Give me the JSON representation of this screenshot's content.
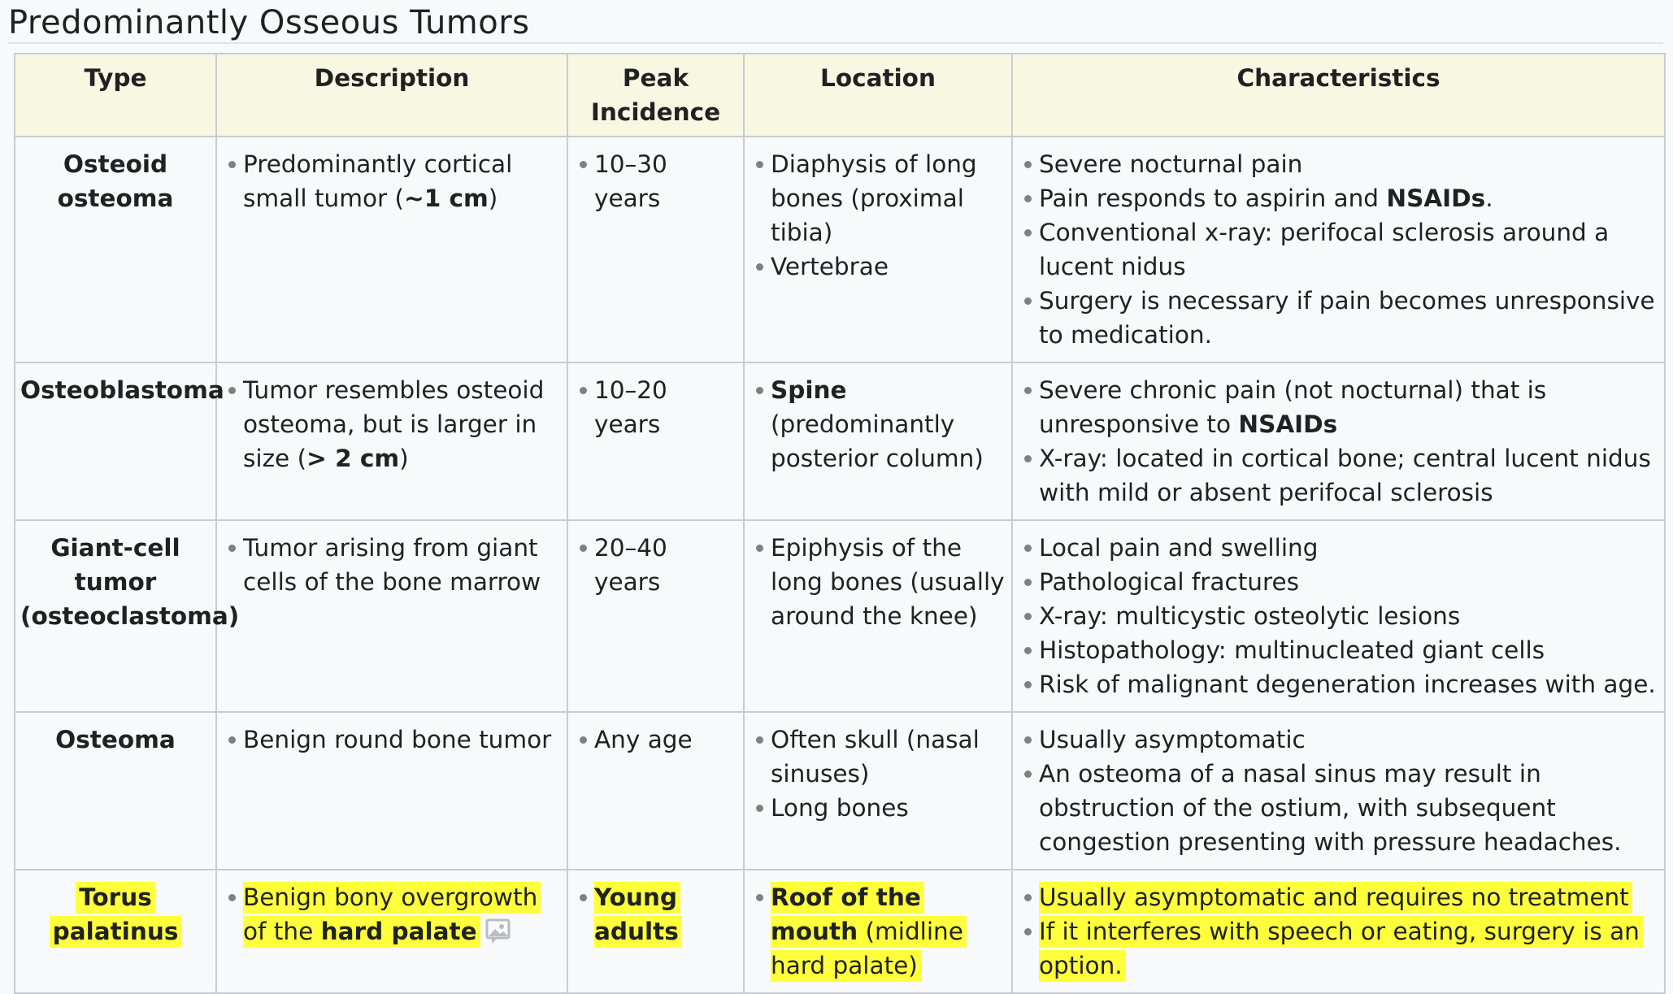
{
  "title": "Predominantly Osseous Tumors",
  "columns": {
    "type": "Type",
    "description": "Description",
    "peak_line1": "Peak",
    "peak_line2": "Incidence",
    "location": "Location",
    "characteristics": "Characteristics"
  },
  "rows": [
    {
      "type": "Osteoid osteoma",
      "description": [
        {
          "pre": "Predominantly cortical small tumor (",
          "bold": "~1 cm",
          "post": ")"
        }
      ],
      "peak": [
        "10–30 years"
      ],
      "location": [
        "Diaphysis of long bones (proximal tibia)",
        "Vertebrae"
      ],
      "characteristics": [
        {
          "pre": "Severe nocturnal pain",
          "bold": "",
          "post": ""
        },
        {
          "pre": "Pain responds to aspirin and ",
          "bold": "NSAIDs",
          "post": "."
        },
        {
          "pre": "Conventional x-ray: perifocal sclerosis around a lucent nidus",
          "bold": "",
          "post": ""
        },
        {
          "pre": "Surgery is necessary if pain becomes unresponsive to medication.",
          "bold": "",
          "post": ""
        }
      ]
    },
    {
      "type": "Osteoblastoma",
      "description": [
        {
          "pre": "Tumor resembles osteoid osteoma, but is larger in size (",
          "bold": "> 2 cm",
          "post": ")"
        }
      ],
      "peak": [
        "10–20 years"
      ],
      "location_bold": "Spine",
      "location_rest": " (predominantly posterior column)",
      "characteristics": [
        {
          "pre": "Severe chronic pain (not nocturnal) that is unresponsive to ",
          "bold": "NSAIDs",
          "post": ""
        },
        {
          "pre": "X-ray: located in cortical bone; central lucent nidus with mild or absent perifocal sclerosis",
          "bold": "",
          "post": ""
        }
      ]
    },
    {
      "type": "Giant-cell tumor (osteoclastoma)",
      "description": [
        {
          "pre": "Tumor arising from giant cells of the bone marrow",
          "bold": "",
          "post": ""
        }
      ],
      "peak": [
        "20–40 years"
      ],
      "location": [
        "Epiphysis of the long bones (usually around the knee)"
      ],
      "characteristics": [
        {
          "pre": "Local pain and swelling",
          "bold": "",
          "post": ""
        },
        {
          "pre": "Pathological fractures",
          "bold": "",
          "post": ""
        },
        {
          "pre": "X-ray: multicystic osteolytic lesions",
          "bold": "",
          "post": ""
        },
        {
          "pre": "Histopathology: multinucleated giant cells",
          "bold": "",
          "post": ""
        },
        {
          "pre": "Risk of malignant degeneration increases with age.",
          "bold": "",
          "post": ""
        }
      ]
    },
    {
      "type": "Osteoma",
      "description": [
        {
          "pre": "Benign round bone tumor",
          "bold": "",
          "post": ""
        }
      ],
      "peak": [
        "Any age"
      ],
      "location": [
        "Often skull (nasal sinuses)",
        "Long bones"
      ],
      "characteristics": [
        {
          "pre": "Usually asymptomatic",
          "bold": "",
          "post": ""
        },
        {
          "pre": "An osteoma of a nasal sinus may result in obstruction of the ostium, with subsequent congestion presenting with pressure headaches.",
          "bold": "",
          "post": ""
        }
      ]
    },
    {
      "type": "Torus palatinus",
      "description_pre": "Benign bony overgrowth of the ",
      "description_bold": "hard palate",
      "peak_bold": "Young adults",
      "location_bold": "Roof of the mouth",
      "location_rest": " (midline hard palate)",
      "characteristics": [
        "Usually asymptomatic and requires no treatment",
        "If it interferes with speech or eating, surgery is an option."
      ],
      "highlight_color": "#ffff3c",
      "image_icon": "image-icon"
    }
  ],
  "colors": {
    "header_bg": "#f8f7e2",
    "border": "#c8ccd1",
    "bullet": "#808080"
  }
}
